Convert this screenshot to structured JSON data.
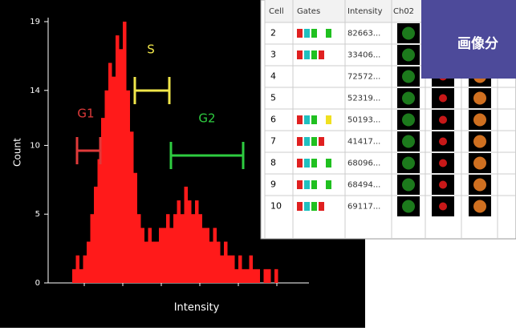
{
  "histogram": {
    "y_label": "Count",
    "x_label": "Intensity",
    "color": "#ff1a1a",
    "ylim": [
      0,
      19
    ],
    "yticks": [
      0,
      5,
      10,
      14,
      19
    ],
    "counts": [
      1,
      2,
      1,
      2,
      3,
      5,
      7,
      9,
      12,
      14,
      16,
      15,
      18,
      17,
      19,
      14,
      11,
      8,
      5,
      4,
      3,
      4,
      3,
      3,
      4,
      4,
      5,
      4,
      5,
      6,
      5,
      7,
      6,
      5,
      6,
      5,
      4,
      4,
      3,
      4,
      3,
      2,
      3,
      2,
      2,
      1,
      2,
      1,
      1,
      2,
      1,
      1,
      0,
      1,
      1,
      0,
      1,
      0,
      0,
      0
    ],
    "gates": [
      {
        "label": "G1",
        "color": "#e03a3a"
      },
      {
        "label": "S",
        "color": "#f0e64a"
      },
      {
        "label": "G2",
        "color": "#2ecc40"
      }
    ]
  },
  "table": {
    "columns": [
      "Cell",
      "Gates",
      "Intensity",
      "Ch02"
    ],
    "rows": [
      [
        2,
        "82663..."
      ],
      [
        3,
        "33406..."
      ],
      [
        4,
        "72572..."
      ],
      [
        5,
        "52319..."
      ],
      [
        6,
        "50193..."
      ],
      [
        7,
        "41417..."
      ],
      [
        8,
        "68096..."
      ],
      [
        9,
        "68494..."
      ],
      [
        10,
        "69117..."
      ]
    ],
    "gate_colors": [
      [
        "#e02020",
        "#20c0c0",
        "#20c020",
        null,
        "#20c020"
      ],
      [
        "#e02020",
        "#20c0c0",
        "#20c020",
        "#e02020"
      ],
      [],
      [],
      [
        "#e02020",
        "#20c0c0",
        "#20c020",
        null,
        "#f0e020"
      ],
      [
        "#e02020",
        "#20c0c0",
        "#20c020",
        "#e02020"
      ],
      [
        "#e02020",
        "#20c0c0",
        "#20c020",
        null,
        "#20c020"
      ],
      [
        "#e02020",
        "#20c0c0",
        "#20c020",
        null,
        "#20c020"
      ],
      [
        "#e02020",
        "#20c0c0",
        "#20c020",
        "#e02020"
      ]
    ]
  },
  "banner": {
    "text": "画像分"
  }
}
